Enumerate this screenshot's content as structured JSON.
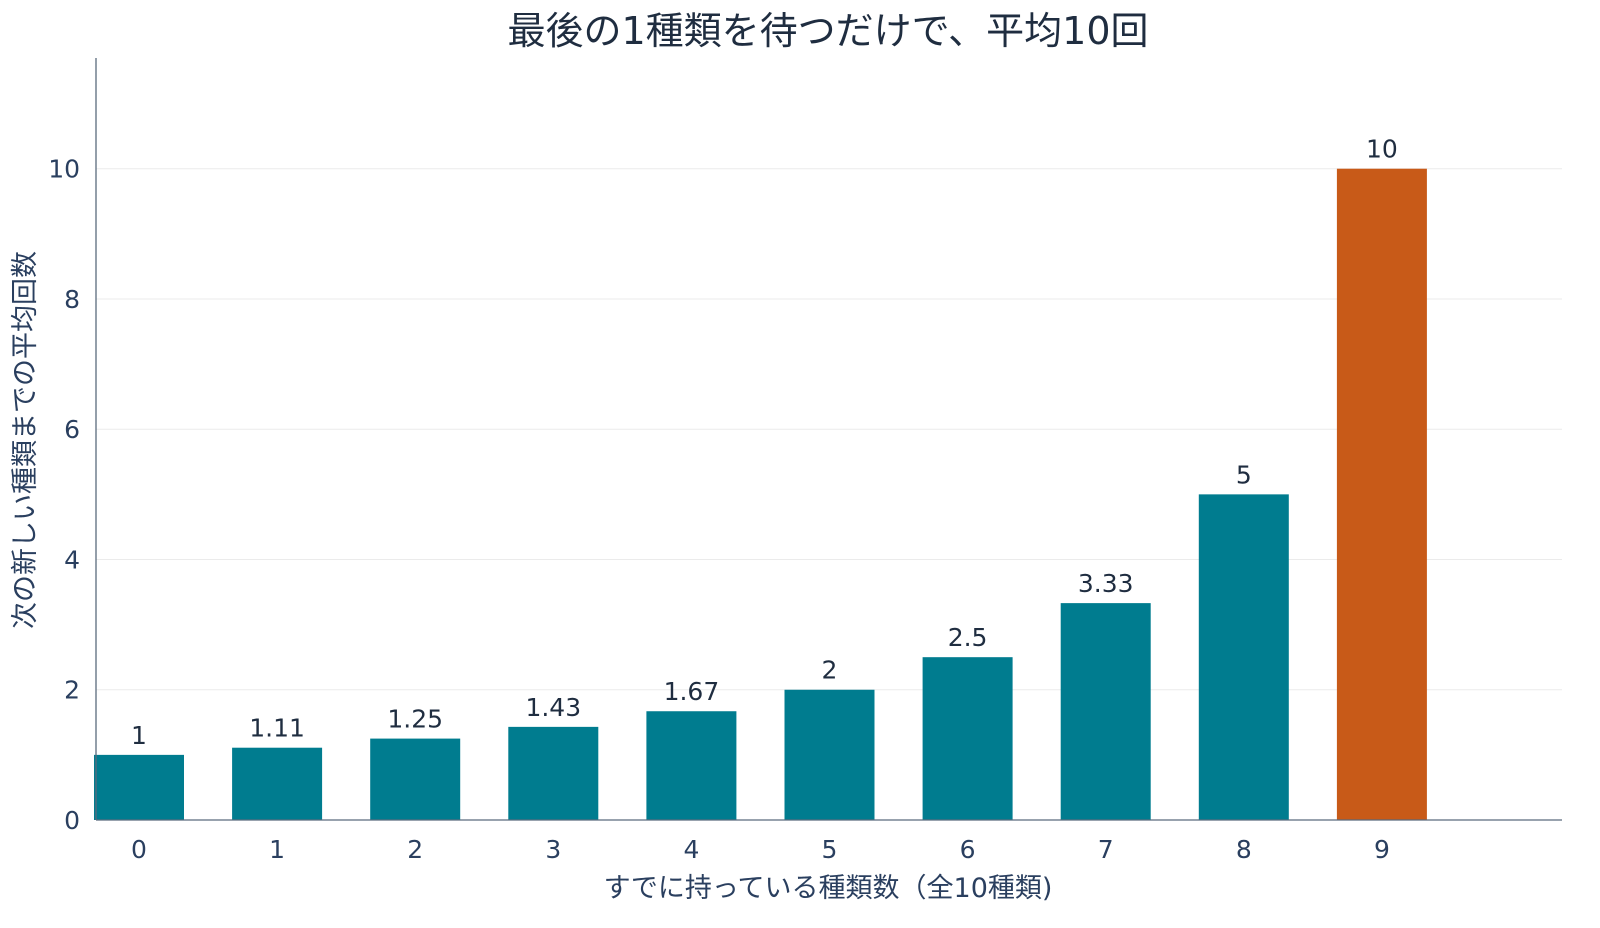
{
  "chart_data": {
    "type": "bar",
    "title": "最後の1種類を待つだけで、平均10回",
    "xlabel": "すでに持っている種類数（全10種類)",
    "ylabel": "次の新しい種類までの平均回数",
    "categories": [
      "0",
      "1",
      "2",
      "3",
      "4",
      "5",
      "6",
      "7",
      "8",
      "9"
    ],
    "values": [
      1,
      1.11,
      1.25,
      1.43,
      1.67,
      2,
      2.5,
      3.33,
      5,
      10
    ],
    "data_labels": [
      "1",
      "1.11",
      "1.25",
      "1.43",
      "1.67",
      "2",
      "2.5",
      "3.33",
      "5",
      "10"
    ],
    "ylim": [
      0,
      11.7
    ],
    "yticks": [
      0,
      2,
      4,
      6,
      8,
      10
    ],
    "grid": true,
    "colors": {
      "default_bar": "#007c8f",
      "highlight_bar": "#c85a18"
    },
    "highlight_index": 9
  }
}
